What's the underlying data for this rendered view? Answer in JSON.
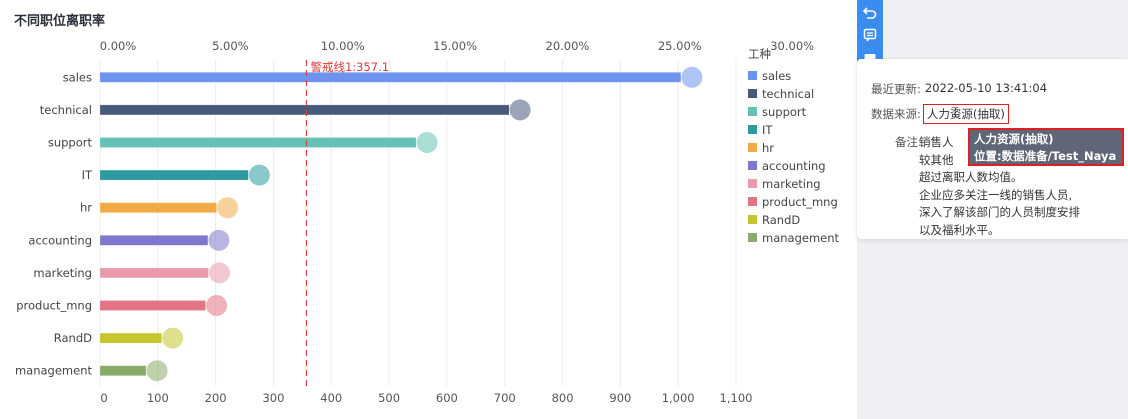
{
  "chart_data": {
    "type": "bar",
    "title": "不同职位离职率",
    "categories": [
      "sales",
      "technical",
      "support",
      "IT",
      "hr",
      "accounting",
      "marketing",
      "product_mng",
      "RandD",
      "management"
    ],
    "values": [
      1015,
      718,
      557,
      267,
      212,
      197,
      198,
      193,
      117,
      90
    ],
    "rates": [
      28.0,
      20.0,
      13.8,
      7.5,
      5.9,
      5.4,
      5.5,
      5.4,
      3.1,
      2.5
    ],
    "colors": [
      "#6e93ee",
      "#485a7c",
      "#63c1b5",
      "#2c9aa0",
      "#f2aa45",
      "#7e78ce",
      "#e99aab",
      "#e37484",
      "#c6c530",
      "#8aab6a"
    ],
    "bottom_axis": {
      "ticks": [
        0,
        100,
        200,
        300,
        400,
        500,
        600,
        700,
        800,
        900,
        "1,000",
        "1,100"
      ],
      "max": 1100
    },
    "top_axis": {
      "ticks": [
        "0.00%",
        "5.00%",
        "10.00%",
        "15.00%",
        "20.00%",
        "25.00%",
        "30.00%"
      ],
      "max": 30
    },
    "reference_line": {
      "value": 357.1,
      "label": "警戒线1:357.1",
      "color": "#e03c3c"
    },
    "legend": {
      "title": "工种",
      "position": "right"
    },
    "grid": true
  },
  "info": {
    "updated_label": "最近更新:",
    "updated_value": "2022-05-10 13:41:04",
    "source_label": "数据来源:",
    "source_value": "人力资源(抽取)",
    "remark_label": "备注:",
    "remark_text": "销售人\n较其他\n超过离职人数均值。\n企业应多关注一线的销售人员,\n深入了解该部门的人员制度安排\n以及福利水平。"
  },
  "tooltip": {
    "line1": "人力资源(抽取)",
    "line2": "位置:数据准备/Test_Naya"
  },
  "toolbar": {
    "icons": [
      "undo-icon",
      "comment-icon",
      "more-icon"
    ]
  }
}
